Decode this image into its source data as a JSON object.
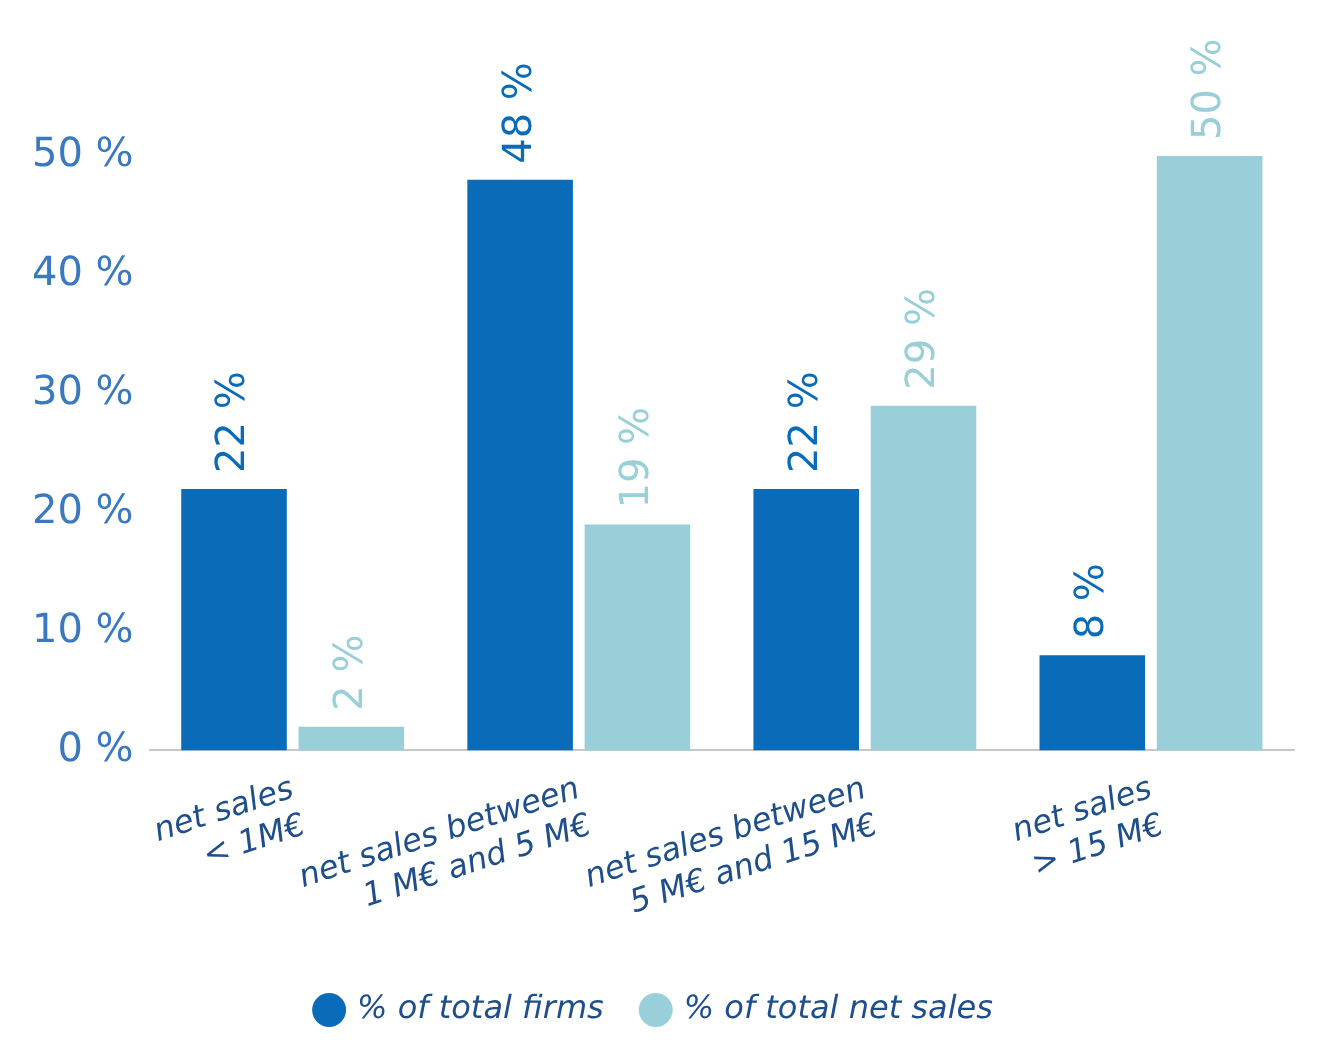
{
  "chart_data": {
    "type": "bar",
    "categories": [
      "net sales\n< 1M€",
      "net sales between\n1 M€ and 5 M€",
      "net sales between\n5 M€ and 15 M€",
      "net sales\n> 15 M€"
    ],
    "series": [
      {
        "name": "% of total firms",
        "color": "#0a6cb8",
        "values": [
          22,
          48,
          22,
          8
        ],
        "value_labels": [
          "22 %",
          "48 %",
          "22 %",
          "8 %"
        ]
      },
      {
        "name": "% of total net sales",
        "color": "#98cfd8",
        "values": [
          2,
          19,
          29,
          50
        ],
        "value_labels": [
          "2 %",
          "19 %",
          "29 %",
          "50 %"
        ]
      }
    ],
    "ylim": [
      0,
      50
    ],
    "yticks": [
      {
        "value": 0,
        "label": "0 %"
      },
      {
        "value": 10,
        "label": "10 %"
      },
      {
        "value": 20,
        "label": "20 %"
      },
      {
        "value": 30,
        "label": "30 %"
      },
      {
        "value": 40,
        "label": "40 %"
      },
      {
        "value": 50,
        "label": "50 %"
      }
    ],
    "grid": false,
    "legend": "bottom"
  }
}
